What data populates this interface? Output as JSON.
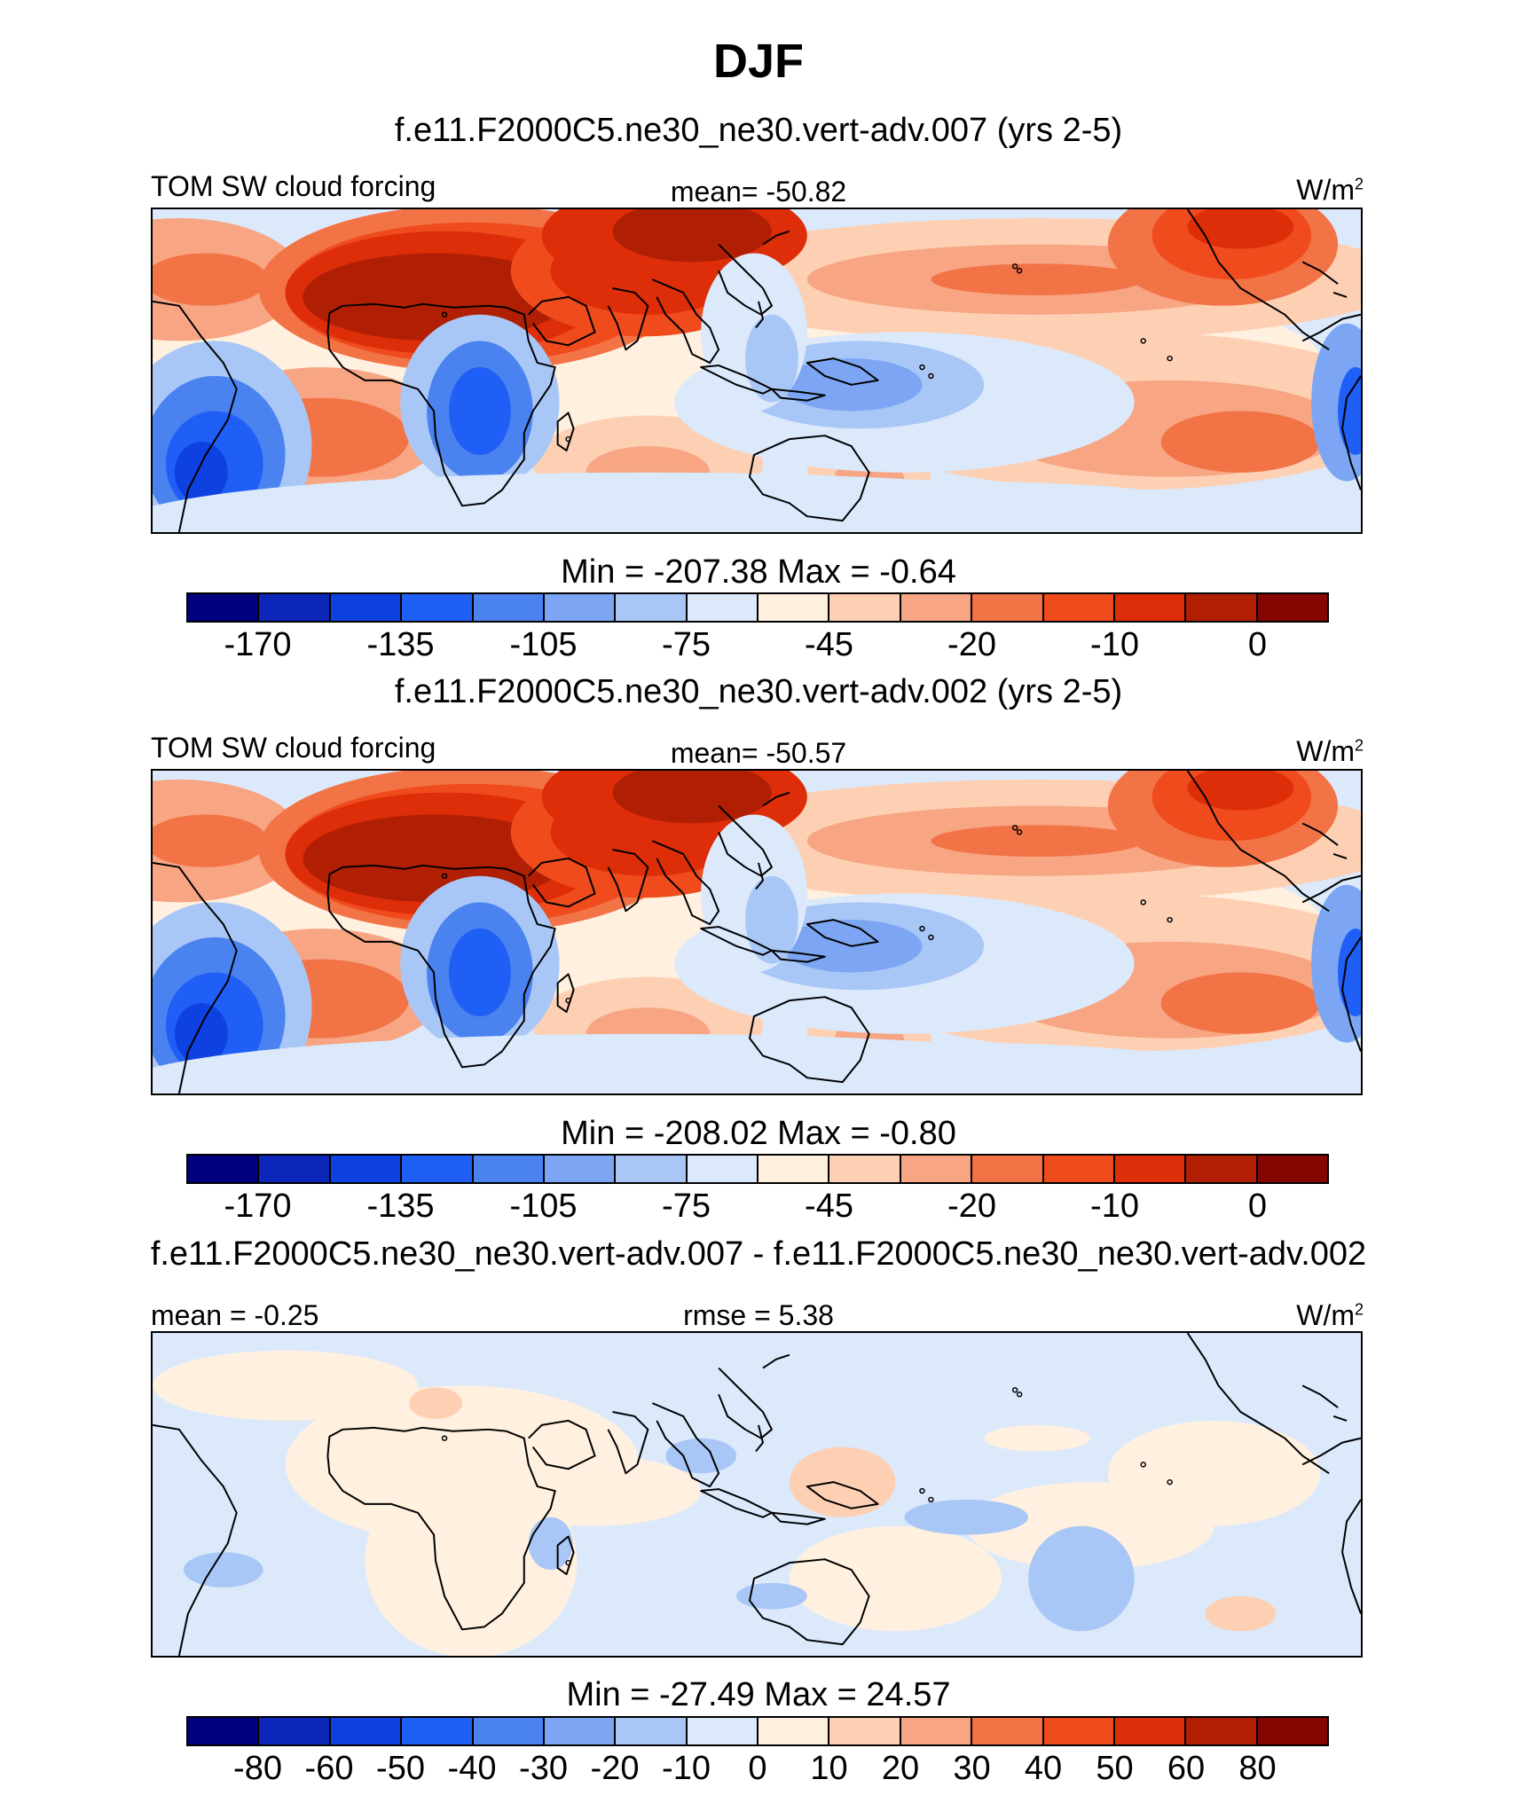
{
  "title": "DJF",
  "colors": {
    "scale": [
      "#00007f",
      "#0b26b9",
      "#0d41e0",
      "#1f5ff6",
      "#4a82f0",
      "#7ca6f3",
      "#a9c7f6",
      "#dbe9fb",
      "#fff0e0",
      "#fdd0b4",
      "#f7a583",
      "#f27346",
      "#ef4b1d",
      "#dd2d09",
      "#b01f04",
      "#860501"
    ],
    "land_outline": "#000000",
    "frame": "#000000"
  },
  "panels": [
    {
      "title": "f.e11.F2000C5.ne30_ne30.vert-adv.007 (yrs 2-5)",
      "left_label": "TOM SW cloud forcing",
      "center_label": "mean= -50.82",
      "units_base": "W/m",
      "units_exp": "2",
      "minmax": "Min = -207.38 Max =  -0.64",
      "colorbar_labels": [
        "-170",
        "-135",
        "-105",
        "-75",
        "-45",
        "-20",
        "-10",
        "0"
      ],
      "field": "cloud_forcing"
    },
    {
      "title": "f.e11.F2000C5.ne30_ne30.vert-adv.002 (yrs 2-5)",
      "left_label": "TOM SW cloud forcing",
      "center_label": "mean= -50.57",
      "units_base": "W/m",
      "units_exp": "2",
      "minmax": "Min = -208.02 Max =  -0.80",
      "colorbar_labels": [
        "-170",
        "-135",
        "-105",
        "-75",
        "-45",
        "-20",
        "-10",
        "0"
      ],
      "field": "cloud_forcing"
    },
    {
      "title": "f.e11.F2000C5.ne30_ne30.vert-adv.007 - f.e11.F2000C5.ne30_ne30.vert-adv.002",
      "left_label": "mean =  -0.25",
      "center_label": "rmse =   5.38",
      "units_base": "W/m",
      "units_exp": "2",
      "minmax": "Min = -27.49 Max =  24.57",
      "colorbar_labels": [
        "-80",
        "-60",
        "-50",
        "-40",
        "-30",
        "-20",
        "-10",
        "0",
        "10",
        "20",
        "30",
        "40",
        "50",
        "60",
        "80"
      ],
      "field": "difference"
    }
  ]
}
